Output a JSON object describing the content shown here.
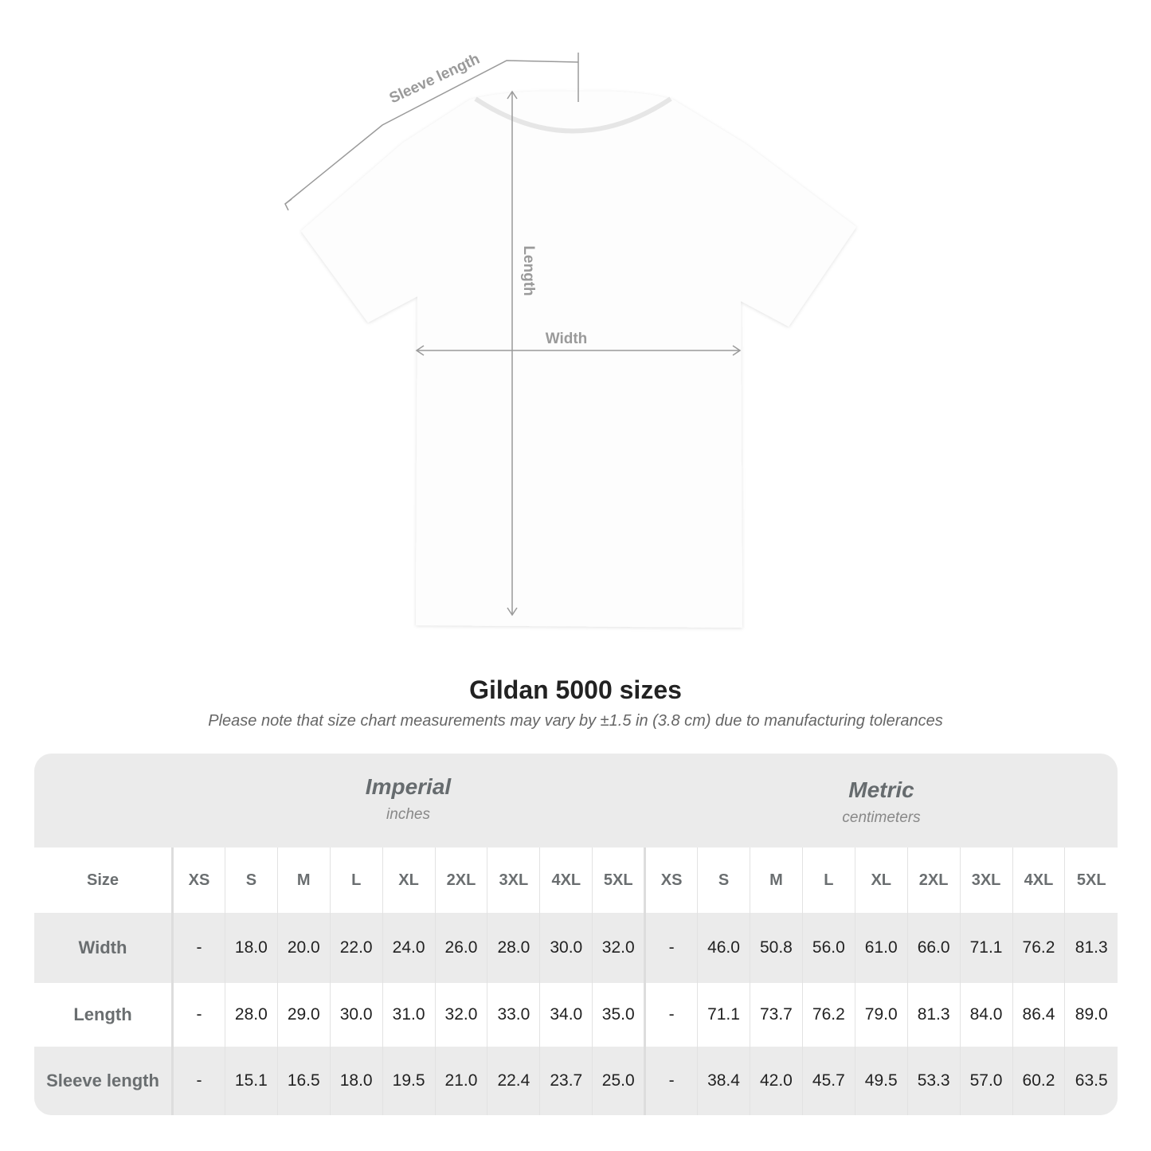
{
  "diagram": {
    "labels": {
      "sleeve": "Sleeve length",
      "length": "Length",
      "width": "Width"
    },
    "line_color": "#9a9a9a"
  },
  "title": "Gildan 5000 sizes",
  "note": "Please note that size chart measurements may vary by ±1.5 in (3.8 cm) due to manufacturing tolerances",
  "table": {
    "imperial": {
      "name": "Imperial",
      "unit": "inches"
    },
    "metric": {
      "name": "Metric",
      "unit": "centimeters"
    },
    "size_label": "Size",
    "sizes": [
      "XS",
      "S",
      "M",
      "L",
      "XL",
      "2XL",
      "3XL",
      "4XL",
      "5XL"
    ],
    "rows": [
      {
        "label": "Width",
        "imperial": [
          "-",
          "18.0",
          "20.0",
          "22.0",
          "24.0",
          "26.0",
          "28.0",
          "30.0",
          "32.0"
        ],
        "metric": [
          "-",
          "46.0",
          "50.8",
          "56.0",
          "61.0",
          "66.0",
          "71.1",
          "76.2",
          "81.3"
        ]
      },
      {
        "label": "Length",
        "imperial": [
          "-",
          "28.0",
          "29.0",
          "30.0",
          "31.0",
          "32.0",
          "33.0",
          "34.0",
          "35.0"
        ],
        "metric": [
          "-",
          "71.1",
          "73.7",
          "76.2",
          "79.0",
          "81.3",
          "84.0",
          "86.4",
          "89.0"
        ]
      },
      {
        "label": "Sleeve length",
        "imperial": [
          "-",
          "15.1",
          "16.5",
          "18.0",
          "19.5",
          "21.0",
          "22.4",
          "23.7",
          "25.0"
        ],
        "metric": [
          "-",
          "38.4",
          "42.0",
          "45.7",
          "49.5",
          "53.3",
          "57.0",
          "60.2",
          "63.5"
        ]
      }
    ]
  }
}
